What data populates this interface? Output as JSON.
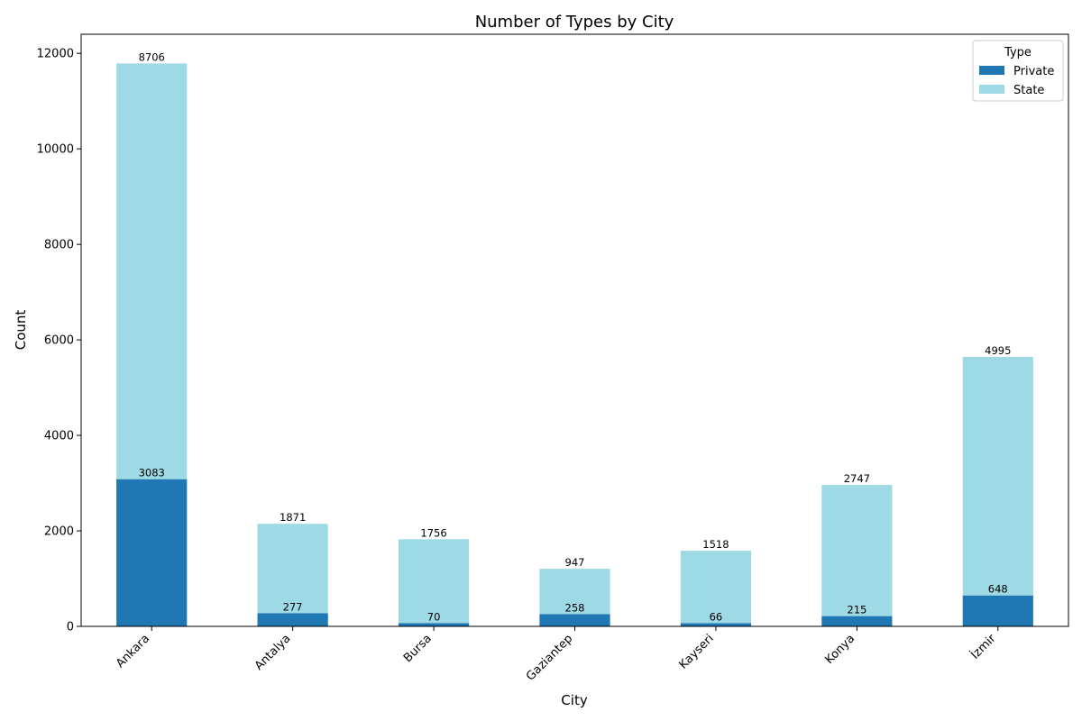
{
  "chart_data": {
    "type": "bar",
    "stacked": true,
    "title": "Number of Types by City",
    "xlabel": "City",
    "ylabel": "Count",
    "categories": [
      "Ankara",
      "Antalya",
      "Bursa",
      "Gaziantep",
      "Kayseri",
      "Konya",
      "İzmir"
    ],
    "series": [
      {
        "name": "Private",
        "color": "#1f77b4",
        "values": [
          3083,
          277,
          70,
          258,
          66,
          215,
          648
        ]
      },
      {
        "name": "State",
        "color": "#9edae5",
        "values": [
          8706,
          1871,
          1756,
          947,
          1518,
          2747,
          4995
        ]
      }
    ],
    "ylim": [
      0,
      12400
    ],
    "yticks": [
      0,
      2000,
      4000,
      6000,
      8000,
      10000,
      12000
    ],
    "grid": false,
    "legend": {
      "title": "Type",
      "position": "top-right"
    }
  }
}
